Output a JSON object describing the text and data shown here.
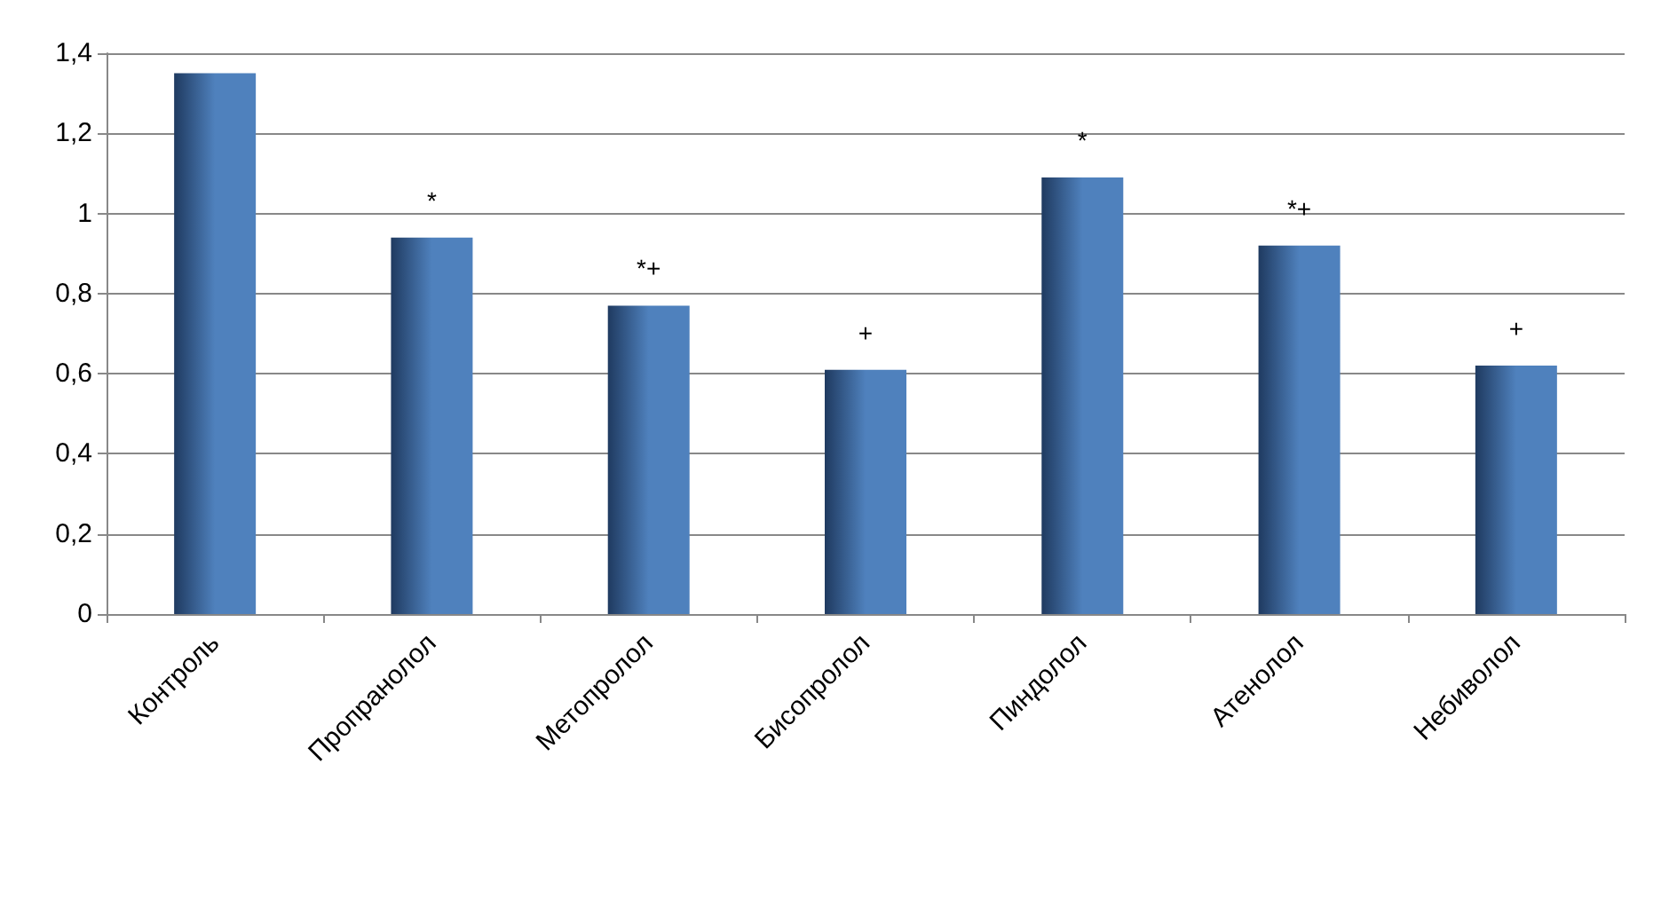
{
  "chart_data": {
    "type": "bar",
    "categories": [
      "Контроль",
      "Пропранолол",
      "Метопролол",
      "Бисопролол",
      "Пиндолол",
      "Атенолол",
      "Небиволол"
    ],
    "values": [
      1.35,
      0.94,
      0.77,
      0.61,
      1.09,
      0.92,
      0.62
    ],
    "color": "#4f81bd",
    "ylim": [
      0,
      1.4
    ],
    "yticks": [
      0,
      {
        "value": 0.2,
        "label": "0,2"
      },
      {
        "value": 0.4,
        "label": "0,4"
      },
      {
        "value": 0.6,
        "label": "0,6"
      },
      {
        "value": 0.8,
        "label": "0,8"
      },
      1,
      {
        "value": 1.2,
        "label": "1,2"
      },
      {
        "value": 1.4,
        "label": "1,4"
      }
    ],
    "grid": "y",
    "annotations": [
      {
        "text": "*",
        "x": "Пропранолол",
        "y": 0.94
      },
      {
        "text": "*+",
        "x": "Метопролол",
        "y": 0.77
      },
      {
        "text": "+",
        "x": "Бисопролол",
        "y": 0.61
      },
      {
        "text": "*",
        "x": "Пиндолол",
        "y": 1.09
      },
      {
        "text": "*+",
        "x": "Атенолол",
        "y": 0.92
      },
      {
        "text": "+",
        "x": "Небиволол",
        "y": 0.62
      }
    ]
  }
}
